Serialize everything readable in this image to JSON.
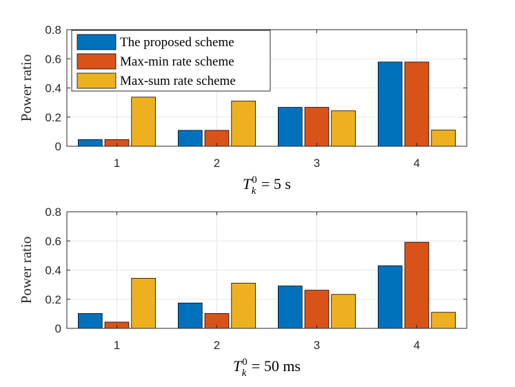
{
  "colors": {
    "series": [
      "#0072BD",
      "#D95319",
      "#EDB120"
    ],
    "grid": "#e6e6e6",
    "axis": "#262626"
  },
  "chart_data": [
    {
      "type": "bar",
      "categories": [
        "1",
        "2",
        "3",
        "4"
      ],
      "series": [
        {
          "name": "The proposed scheme",
          "values": [
            0.046,
            0.109,
            0.267,
            0.578
          ]
        },
        {
          "name": "Max-min rate scheme",
          "values": [
            0.046,
            0.109,
            0.267,
            0.578
          ]
        },
        {
          "name": "Max-sum rate scheme",
          "values": [
            0.337,
            0.31,
            0.243,
            0.111
          ]
        }
      ],
      "ylabel": "Power ratio",
      "xlabel": {
        "symbol": "T",
        "sub": "k",
        "sup": "0",
        "rest": " = 5 s"
      },
      "ylim": [
        0,
        0.8
      ],
      "yticks": [
        "0",
        "0.2",
        "0.4",
        "0.6",
        "0.8"
      ],
      "grid": true,
      "legend": "top-left"
    },
    {
      "type": "bar",
      "categories": [
        "1",
        "2",
        "3",
        "4"
      ],
      "series": [
        {
          "name": "The proposed scheme",
          "values": [
            0.102,
            0.174,
            0.291,
            0.43
          ]
        },
        {
          "name": "Max-min rate scheme",
          "values": [
            0.043,
            0.102,
            0.262,
            0.591
          ]
        },
        {
          "name": "Max-sum rate scheme",
          "values": [
            0.344,
            0.31,
            0.233,
            0.11
          ]
        }
      ],
      "ylabel": "Power ratio",
      "xlabel": {
        "symbol": "T",
        "sub": "k",
        "sup": "0",
        "rest": " = 50 ms"
      },
      "ylim": [
        0,
        0.8
      ],
      "yticks": [
        "0",
        "0.2",
        "0.4",
        "0.6",
        "0.8"
      ],
      "grid": true
    }
  ]
}
